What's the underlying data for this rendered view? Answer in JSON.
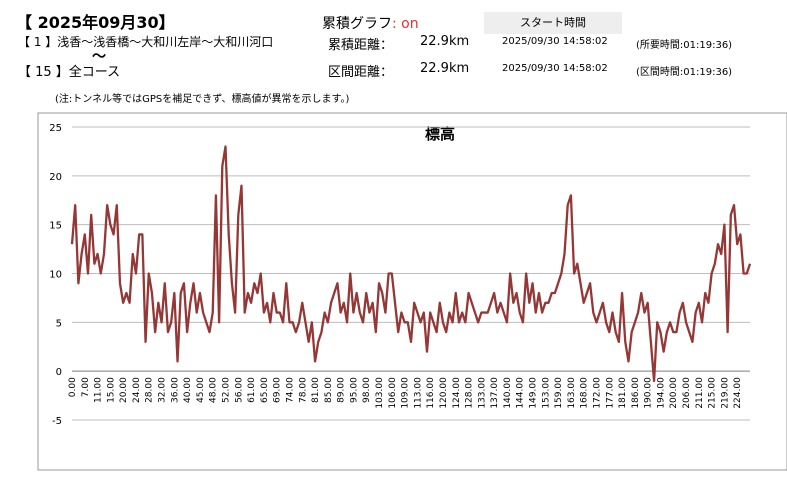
{
  "header": {
    "date": "【 2025年09月30】",
    "route": "【 1 】浅香～浅香橋～大和川左岸～大和川河口",
    "tilde": "〜",
    "course": "【 15 】全コース",
    "graph_label": "累積グラフ",
    "graph_state": ": on",
    "start_header": "スタート時間",
    "rows": [
      {
        "label": "累積距離：",
        "distance": "22.9km",
        "start": "2025/09/30 14:58:02",
        "elapsed": "(所要時間:01:19:36)"
      },
      {
        "label": "区間距離：",
        "distance": "22.9km",
        "start": "2025/09/30 14:58:02",
        "elapsed": "(区間時間:01:19:36)"
      }
    ],
    "note": "(注:トンネル等ではGPSを補足できず、標高値が異常を示します。)"
  },
  "chart_data": {
    "type": "line",
    "title": "標高",
    "color": "#953735",
    "grid": true,
    "ylim": [
      -5,
      25
    ],
    "yticks": [
      -5,
      0,
      5,
      10,
      15,
      20,
      25
    ],
    "categories": [
      "0.00",
      null,
      null,
      null,
      "7.00",
      null,
      null,
      null,
      "11.00",
      null,
      null,
      null,
      "15.00",
      null,
      null,
      null,
      "20.00",
      null,
      null,
      null,
      "24.00",
      null,
      null,
      null,
      "28.00",
      null,
      null,
      null,
      "32.00",
      null,
      null,
      null,
      "36.00",
      null,
      null,
      null,
      "40.00",
      null,
      null,
      null,
      "45.00",
      null,
      null,
      null,
      "48.00",
      null,
      null,
      null,
      "52.00",
      null,
      null,
      null,
      "56.00",
      null,
      null,
      null,
      "61.00",
      null,
      null,
      null,
      "65.00",
      null,
      null,
      null,
      "69.00",
      null,
      null,
      null,
      "74.00",
      null,
      null,
      null,
      "78.00",
      null,
      null,
      null,
      "81.00",
      null,
      null,
      null,
      "85.00",
      null,
      null,
      null,
      "89.00",
      null,
      null,
      null,
      "95.00",
      null,
      null,
      null,
      "98.00",
      null,
      null,
      null,
      "103.00",
      null,
      null,
      null,
      "106.00",
      null,
      null,
      null,
      "109.00",
      null,
      null,
      null,
      "113.00",
      null,
      null,
      null,
      "116.00",
      null,
      null,
      null,
      "120.00",
      null,
      null,
      null,
      "124.00",
      null,
      null,
      null,
      "128.00",
      null,
      null,
      null,
      "133.00",
      null,
      null,
      null,
      "137.00",
      null,
      null,
      null,
      "140.00",
      null,
      null,
      null,
      "144.00",
      null,
      null,
      null,
      "149.00",
      null,
      null,
      null,
      "153.00",
      null,
      null,
      null,
      "159.00",
      null,
      null,
      null,
      "163.00",
      null,
      null,
      null,
      "168.00",
      null,
      null,
      null,
      "172.00",
      null,
      null,
      null,
      "177.00",
      null,
      null,
      null,
      "181.00",
      null,
      null,
      null,
      "186.00",
      null,
      null,
      null,
      "190.00",
      null,
      null,
      null,
      "194.00",
      null,
      null,
      null,
      "200.00",
      null,
      null,
      null,
      "206.00",
      null,
      null,
      null,
      "211.00",
      null,
      null,
      null,
      "215.00",
      null,
      null,
      null,
      "219.00",
      null,
      null,
      null,
      "224.00",
      null,
      null,
      null,
      null
    ],
    "values": [
      13,
      17,
      9,
      12,
      14,
      10,
      16,
      11,
      12,
      10,
      12,
      17,
      15,
      14,
      17,
      9,
      7,
      8,
      7,
      12,
      10,
      14,
      14,
      3,
      10,
      8,
      4,
      7,
      5,
      9,
      4,
      5,
      8,
      1,
      8,
      9,
      4,
      7,
      9,
      6,
      8,
      6,
      5,
      4,
      6,
      18,
      5,
      21,
      23,
      14,
      9,
      6,
      16,
      19,
      6,
      8,
      7,
      9,
      8,
      10,
      6,
      7,
      5,
      8,
      6,
      6,
      5,
      9,
      5,
      5,
      4,
      5,
      7,
      5,
      3,
      5,
      1,
      3,
      4,
      6,
      5,
      7,
      8,
      9,
      6,
      7,
      5,
      10,
      6,
      8,
      6,
      5,
      8,
      6,
      7,
      4,
      9,
      8,
      6,
      10,
      10,
      7,
      4,
      6,
      5,
      5,
      3,
      7,
      6,
      5,
      6,
      2,
      6,
      5,
      4,
      7,
      5,
      4,
      6,
      5,
      8,
      5,
      6,
      5,
      8,
      7,
      6,
      5,
      6,
      6,
      6,
      7,
      8,
      6,
      7,
      6,
      5,
      10,
      7,
      8,
      6,
      5,
      10,
      7,
      9,
      6,
      8,
      6,
      7,
      7,
      8,
      8,
      9,
      10,
      12,
      17,
      18,
      10,
      11,
      9,
      7,
      8,
      9,
      6,
      5,
      6,
      7,
      5,
      4,
      6,
      4,
      3,
      8,
      3,
      1,
      4,
      5,
      6,
      8,
      6,
      7,
      3,
      -1,
      5,
      4,
      2,
      4,
      5,
      4,
      4,
      6,
      7,
      5,
      4,
      3,
      6,
      7,
      5,
      8,
      7,
      10,
      11,
      13,
      12,
      15,
      4,
      16,
      17,
      13,
      14,
      10,
      10,
      11
    ]
  }
}
